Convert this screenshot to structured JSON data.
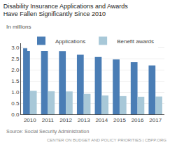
{
  "chart_data": {
    "type": "bar",
    "title": "Disability Insurance Applications and Awards\nHave Fallen Significantly Since 2010",
    "subtitle": "In millions",
    "categories": [
      "2010",
      "2011",
      "2012",
      "2013",
      "2014",
      "2015",
      "2016",
      "2017"
    ],
    "series": [
      {
        "name": "Applications",
        "color": "#4a7db5",
        "values": [
          2.97,
          2.91,
          2.85,
          2.68,
          2.58,
          2.47,
          2.35,
          2.2
        ]
      },
      {
        "name": "Benefit awards",
        "color": "#a8c8d8",
        "values": [
          1.06,
          1.04,
          1.03,
          0.92,
          0.85,
          0.82,
          0.79,
          0.8
        ]
      }
    ],
    "ylim": [
      0,
      3.2
    ],
    "yticks": [
      {
        "value": 0,
        "label": "0.0"
      },
      0.5,
      {
        "value": 1,
        "label": "1.0"
      },
      1.5,
      {
        "value": 2,
        "label": "2.0"
      },
      2.5,
      {
        "value": 3,
        "label": "3.0"
      }
    ],
    "grid": true,
    "legend": "top",
    "annotations": [
      "Source: Social Security Administration",
      "CENTER ON BUDGET AND POLICY PRIORITIES | CBPP.ORG"
    ]
  }
}
